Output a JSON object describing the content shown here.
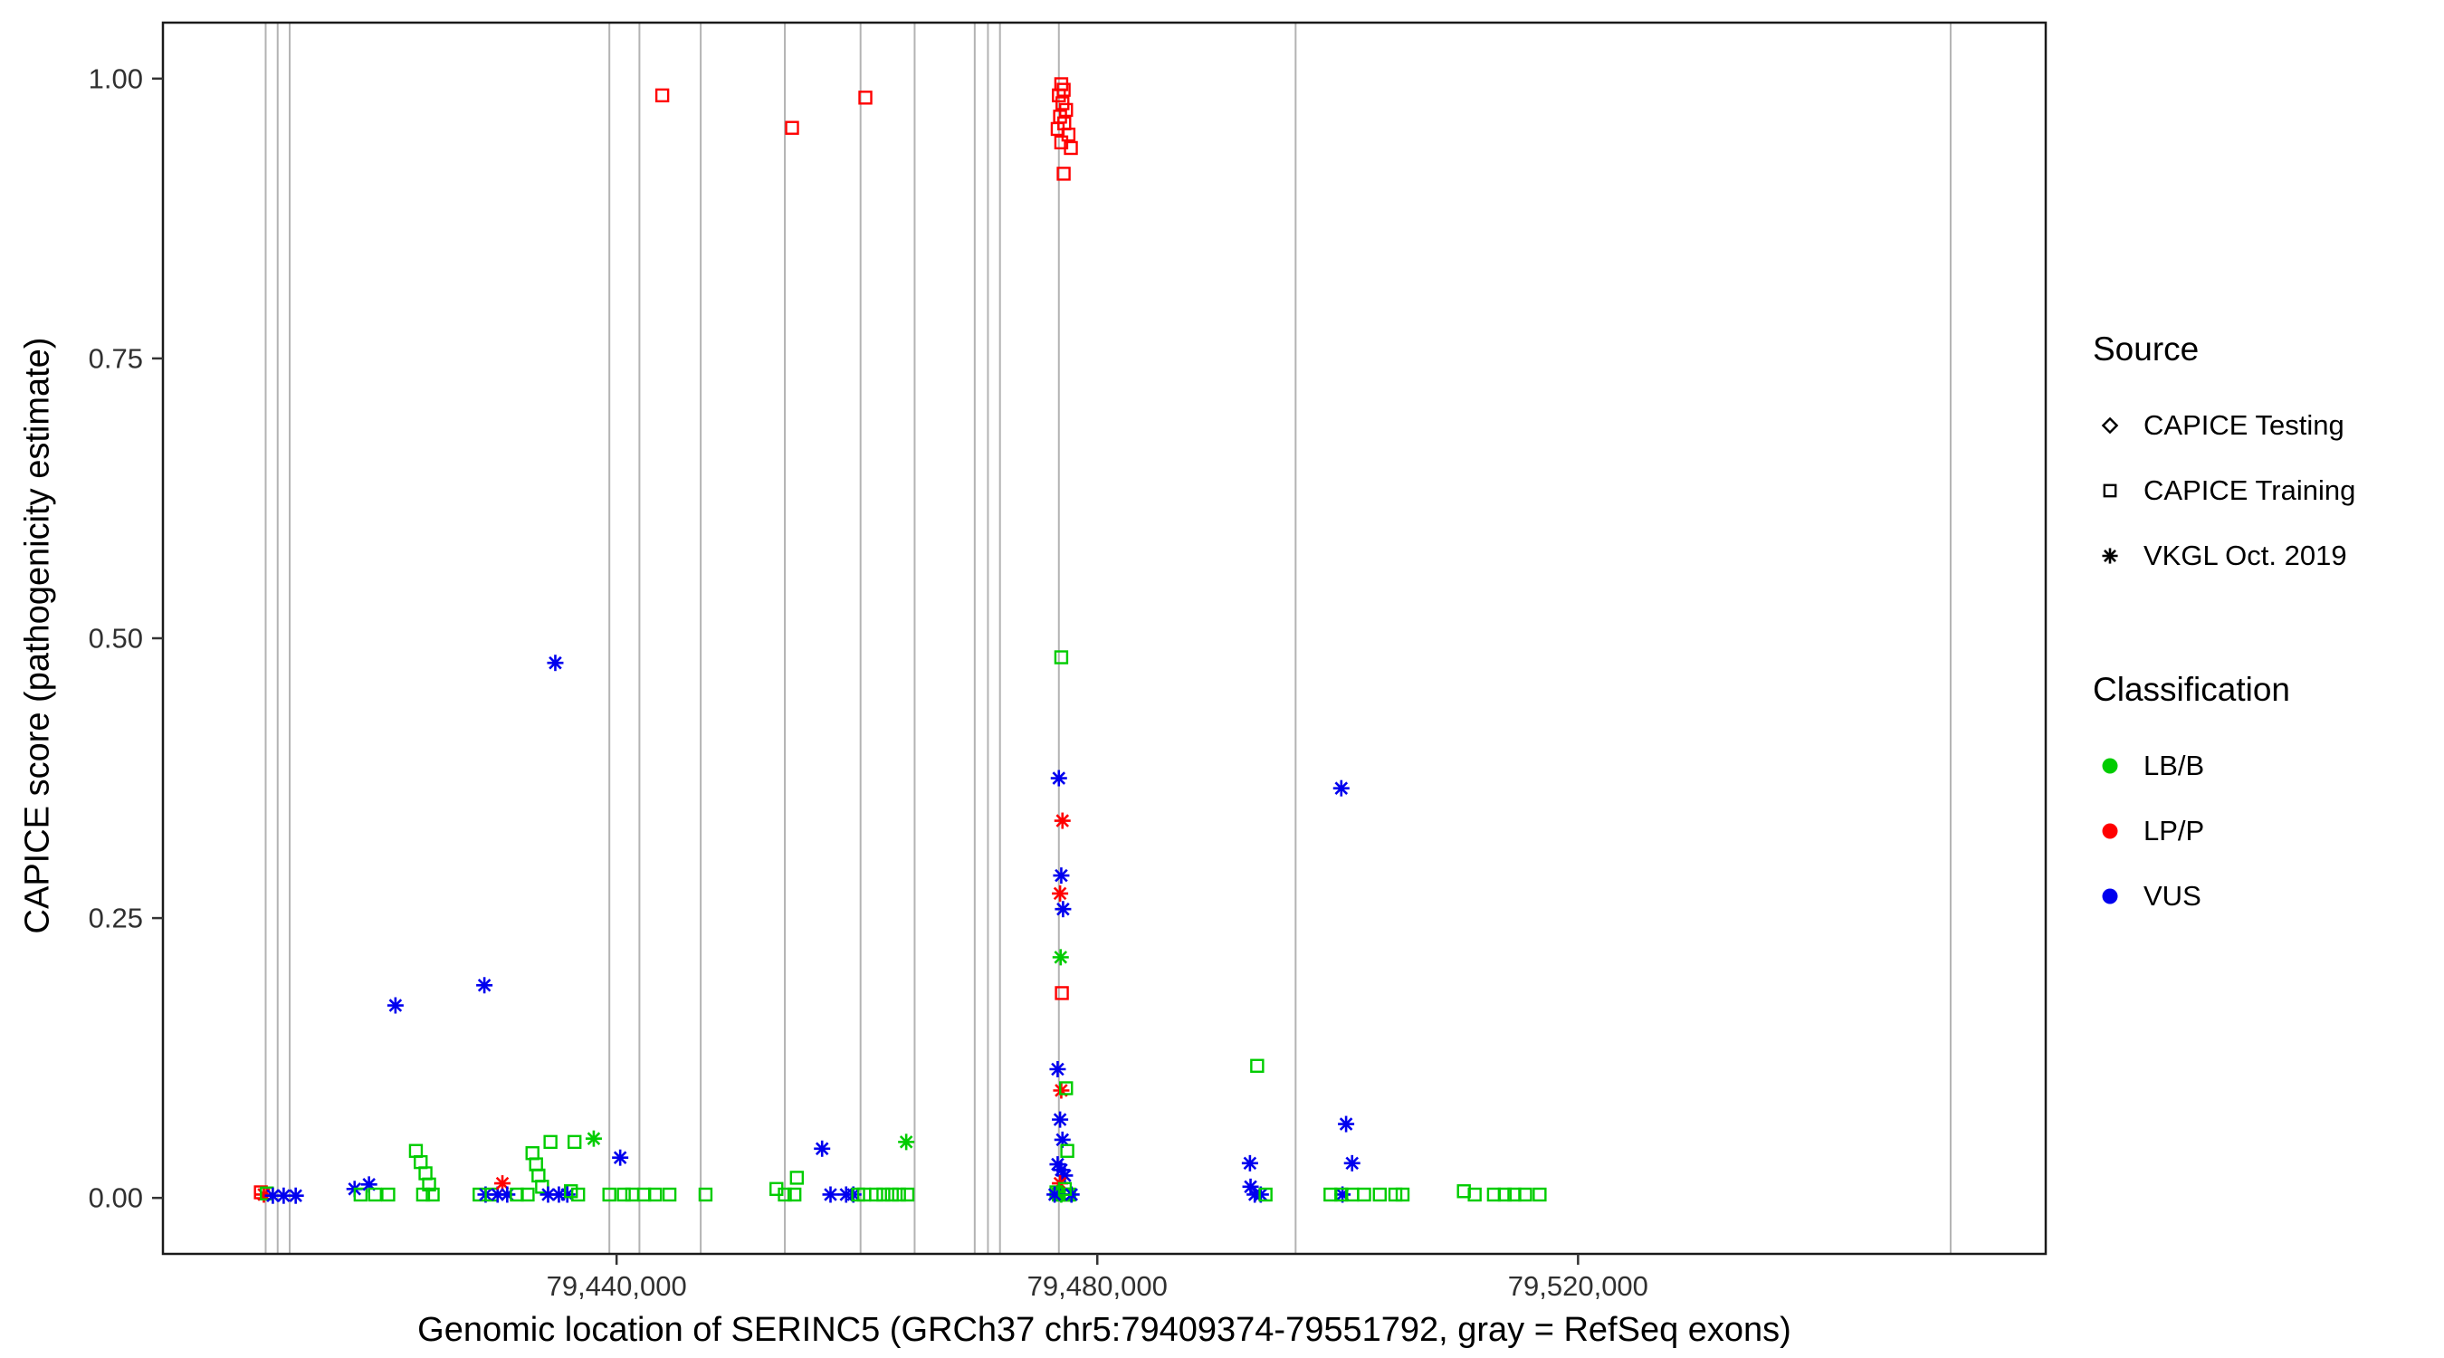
{
  "axes": {
    "x": {
      "label": "Genomic location of SERINC5 (GRCh37 chr5:79409374-79551792, gray = RefSeq exons)",
      "domain": [
        79402253,
        79558913
      ],
      "ticks": [
        {
          "value": 79440000,
          "label": "79,440,000"
        },
        {
          "value": 79480000,
          "label": "79,480,000"
        },
        {
          "value": 79520000,
          "label": "79,520,000"
        }
      ]
    },
    "y": {
      "label": "CAPICE score (pathogenicity estimate)",
      "domain": [
        -0.05,
        1.05
      ],
      "ticks": [
        {
          "value": 0.0,
          "label": "0.00"
        },
        {
          "value": 0.25,
          "label": "0.25"
        },
        {
          "value": 0.5,
          "label": "0.50"
        },
        {
          "value": 0.75,
          "label": "0.75"
        },
        {
          "value": 1.0,
          "label": "1.00"
        }
      ]
    }
  },
  "legend": {
    "source": {
      "title": "Source",
      "items": [
        {
          "label": "CAPICE Testing",
          "shape": "diamond"
        },
        {
          "label": "CAPICE Training",
          "shape": "square"
        },
        {
          "label": "VKGL Oct. 2019",
          "shape": "asterisk"
        }
      ]
    },
    "classification": {
      "title": "Classification",
      "items": [
        {
          "label": "LB/B",
          "color": "#00CC00"
        },
        {
          "label": "LP/P",
          "color": "#FF0000"
        },
        {
          "label": "VUS",
          "color": "#0000EE"
        }
      ]
    }
  },
  "chart_data": {
    "type": "scatter",
    "title": "",
    "xlabel": "Genomic location of SERINC5 (GRCh37 chr5:79409374-79551792, gray = RefSeq exons)",
    "ylabel": "CAPICE score (pathogenicity estimate)",
    "x_domain": [
      79402253,
      79558913
    ],
    "y_domain": [
      -0.05,
      1.05
    ],
    "grid": false,
    "legend_position": "right",
    "exon_color": "#B3B3B3",
    "panel_border_color": "#1a1a1a",
    "tick_text_color": "#303030",
    "shape_map": {
      "test": "diamond",
      "train": "square",
      "vkgl": "asterisk"
    },
    "source_labels": {
      "test": "CAPICE Testing",
      "train": "CAPICE Training",
      "vkgl": "VKGL Oct. 2019"
    },
    "color_map": {
      "LB/B": "#00CC00",
      "LP/P": "#FF0000",
      "VUS": "#0000EE"
    },
    "exons": [
      79410800,
      79411800,
      79412800,
      79439400,
      79441900,
      79447000,
      79454000,
      79460300,
      79464800,
      79469800,
      79470900,
      79471900,
      79476800,
      79496500,
      79551000
    ],
    "point_format": [
      "x_genomic_position",
      "y_capice_score",
      "source",
      "classification"
    ],
    "points": [
      [
        79410400,
        0.005,
        "train",
        "LP/P"
      ],
      [
        79410650,
        0.003,
        "vkgl",
        "LP/P"
      ],
      [
        79410900,
        0.004,
        "train",
        "LB/B"
      ],
      [
        79411400,
        0.002,
        "vkgl",
        "VUS"
      ],
      [
        79412300,
        0.002,
        "vkgl",
        "VUS"
      ],
      [
        79413300,
        0.002,
        "vkgl",
        "VUS"
      ],
      [
        79418200,
        0.008,
        "vkgl",
        "VUS"
      ],
      [
        79418700,
        0.003,
        "train",
        "LB/B"
      ],
      [
        79419400,
        0.012,
        "vkgl",
        "VUS"
      ],
      [
        79419900,
        0.003,
        "train",
        "LB/B"
      ],
      [
        79421000,
        0.003,
        "train",
        "LB/B"
      ],
      [
        79421600,
        0.172,
        "vkgl",
        "VUS"
      ],
      [
        79423300,
        0.042,
        "train",
        "LB/B"
      ],
      [
        79423700,
        0.032,
        "train",
        "LB/B"
      ],
      [
        79424100,
        0.022,
        "train",
        "LB/B"
      ],
      [
        79424400,
        0.012,
        "train",
        "LB/B"
      ],
      [
        79423900,
        0.003,
        "train",
        "LB/B"
      ],
      [
        79424700,
        0.003,
        "train",
        "LB/B"
      ],
      [
        79428600,
        0.003,
        "train",
        "LB/B"
      ],
      [
        79429000,
        0.19,
        "vkgl",
        "VUS"
      ],
      [
        79429100,
        0.003,
        "vkgl",
        "VUS"
      ],
      [
        79429600,
        0.003,
        "train",
        "LB/B"
      ],
      [
        79430100,
        0.003,
        "vkgl",
        "VUS"
      ],
      [
        79430500,
        0.013,
        "vkgl",
        "LP/P"
      ],
      [
        79430900,
        0.003,
        "vkgl",
        "VUS"
      ],
      [
        79431700,
        0.003,
        "train",
        "LB/B"
      ],
      [
        79432600,
        0.003,
        "train",
        "LB/B"
      ],
      [
        79433000,
        0.04,
        "train",
        "LB/B"
      ],
      [
        79433300,
        0.03,
        "train",
        "LB/B"
      ],
      [
        79433500,
        0.02,
        "train",
        "LB/B"
      ],
      [
        79433800,
        0.01,
        "train",
        "LB/B"
      ],
      [
        79434300,
        0.003,
        "vkgl",
        "VUS"
      ],
      [
        79434500,
        0.05,
        "train",
        "LB/B"
      ],
      [
        79434900,
        0.478,
        "vkgl",
        "VUS"
      ],
      [
        79435200,
        0.003,
        "vkgl",
        "VUS"
      ],
      [
        79435900,
        0.003,
        "vkgl",
        "VUS"
      ],
      [
        79436200,
        0.006,
        "train",
        "LB/B"
      ],
      [
        79436500,
        0.05,
        "train",
        "LB/B"
      ],
      [
        79436800,
        0.003,
        "train",
        "LB/B"
      ],
      [
        79438100,
        0.053,
        "vkgl",
        "LB/B"
      ],
      [
        79439400,
        0.003,
        "train",
        "LB/B"
      ],
      [
        79440300,
        0.036,
        "vkgl",
        "VUS"
      ],
      [
        79440600,
        0.003,
        "train",
        "LB/B"
      ],
      [
        79441300,
        0.003,
        "train",
        "LB/B"
      ],
      [
        79442300,
        0.003,
        "train",
        "LB/B"
      ],
      [
        79443200,
        0.003,
        "train",
        "LB/B"
      ],
      [
        79443800,
        0.985,
        "train",
        "LP/P"
      ],
      [
        79444400,
        0.003,
        "train",
        "LB/B"
      ],
      [
        79447400,
        0.003,
        "train",
        "LB/B"
      ],
      [
        79453300,
        0.008,
        "train",
        "LB/B"
      ],
      [
        79454000,
        0.003,
        "train",
        "LB/B"
      ],
      [
        79454600,
        0.956,
        "train",
        "LP/P"
      ],
      [
        79455000,
        0.018,
        "train",
        "LB/B"
      ],
      [
        79454800,
        0.003,
        "train",
        "LB/B"
      ],
      [
        79457100,
        0.044,
        "vkgl",
        "VUS"
      ],
      [
        79457800,
        0.003,
        "vkgl",
        "VUS"
      ],
      [
        79459100,
        0.003,
        "vkgl",
        "VUS"
      ],
      [
        79459700,
        0.003,
        "vkgl",
        "VUS"
      ],
      [
        79460100,
        0.003,
        "train",
        "LB/B"
      ],
      [
        79460600,
        0.003,
        "train",
        "LB/B"
      ],
      [
        79460700,
        0.983,
        "train",
        "LP/P"
      ],
      [
        79461600,
        0.003,
        "train",
        "LB/B"
      ],
      [
        79462200,
        0.003,
        "train",
        "LB/B"
      ],
      [
        79462900,
        0.003,
        "train",
        "LB/B"
      ],
      [
        79463500,
        0.003,
        "train",
        "LB/B"
      ],
      [
        79464100,
        0.05,
        "vkgl",
        "LB/B"
      ],
      [
        79464200,
        0.003,
        "train",
        "LB/B"
      ],
      [
        79477000,
        0.995,
        "train",
        "LP/P"
      ],
      [
        79477200,
        0.99,
        "train",
        "LP/P"
      ],
      [
        79476800,
        0.985,
        "train",
        "LP/P"
      ],
      [
        79477100,
        0.978,
        "train",
        "LP/P"
      ],
      [
        79477400,
        0.972,
        "train",
        "LP/P"
      ],
      [
        79476900,
        0.966,
        "train",
        "LP/P"
      ],
      [
        79477250,
        0.96,
        "train",
        "LP/P"
      ],
      [
        79476700,
        0.955,
        "train",
        "LP/P"
      ],
      [
        79477600,
        0.95,
        "train",
        "LP/P"
      ],
      [
        79477000,
        0.943,
        "train",
        "LP/P"
      ],
      [
        79477800,
        0.938,
        "train",
        "LP/P"
      ],
      [
        79477200,
        0.915,
        "train",
        "LP/P"
      ],
      [
        79477000,
        0.483,
        "train",
        "LB/B"
      ],
      [
        79476800,
        0.375,
        "vkgl",
        "VUS"
      ],
      [
        79477100,
        0.337,
        "vkgl",
        "LP/P"
      ],
      [
        79477000,
        0.288,
        "vkgl",
        "VUS"
      ],
      [
        79476900,
        0.272,
        "vkgl",
        "LP/P"
      ],
      [
        79477150,
        0.258,
        "vkgl",
        "VUS"
      ],
      [
        79476950,
        0.215,
        "vkgl",
        "LB/B"
      ],
      [
        79477050,
        0.183,
        "train",
        "LP/P"
      ],
      [
        79476700,
        0.115,
        "vkgl",
        "VUS"
      ],
      [
        79477000,
        0.096,
        "vkgl",
        "LP/P"
      ],
      [
        79477400,
        0.098,
        "train",
        "LB/B"
      ],
      [
        79476900,
        0.07,
        "vkgl",
        "VUS"
      ],
      [
        79477100,
        0.052,
        "vkgl",
        "VUS"
      ],
      [
        79477500,
        0.042,
        "train",
        "LB/B"
      ],
      [
        79476700,
        0.03,
        "vkgl",
        "VUS"
      ],
      [
        79477000,
        0.025,
        "vkgl",
        "VUS"
      ],
      [
        79477300,
        0.02,
        "vkgl",
        "VUS"
      ],
      [
        79476900,
        0.013,
        "vkgl",
        "LP/P"
      ],
      [
        79476600,
        0.005,
        "train",
        "LB/B"
      ],
      [
        79476800,
        0.003,
        "train",
        "LB/B"
      ],
      [
        79477000,
        0.003,
        "vkgl",
        "LB/B"
      ],
      [
        79477200,
        0.003,
        "train",
        "LB/B"
      ],
      [
        79477450,
        0.003,
        "train",
        "LB/B"
      ],
      [
        79477650,
        0.003,
        "train",
        "LB/B"
      ],
      [
        79476450,
        0.003,
        "vkgl",
        "VUS"
      ],
      [
        79477850,
        0.003,
        "vkgl",
        "VUS"
      ],
      [
        79477300,
        0.008,
        "train",
        "LB/B"
      ],
      [
        79493300,
        0.118,
        "train",
        "LB/B"
      ],
      [
        79492700,
        0.031,
        "vkgl",
        "VUS"
      ],
      [
        79492750,
        0.01,
        "vkgl",
        "VUS"
      ],
      [
        79493100,
        0.003,
        "vkgl",
        "VUS"
      ],
      [
        79493600,
        0.003,
        "vkgl",
        "VUS"
      ],
      [
        79494000,
        0.003,
        "train",
        "LB/B"
      ],
      [
        79500300,
        0.366,
        "vkgl",
        "VUS"
      ],
      [
        79500700,
        0.066,
        "vkgl",
        "VUS"
      ],
      [
        79501200,
        0.031,
        "vkgl",
        "VUS"
      ],
      [
        79500400,
        0.003,
        "vkgl",
        "VUS"
      ],
      [
        79499400,
        0.003,
        "train",
        "LB/B"
      ],
      [
        79500300,
        0.003,
        "train",
        "LB/B"
      ],
      [
        79501200,
        0.003,
        "train",
        "LB/B"
      ],
      [
        79502200,
        0.003,
        "train",
        "LB/B"
      ],
      [
        79503500,
        0.003,
        "train",
        "LB/B"
      ],
      [
        79504800,
        0.003,
        "train",
        "LB/B"
      ],
      [
        79505400,
        0.003,
        "train",
        "LB/B"
      ],
      [
        79510500,
        0.006,
        "train",
        "LB/B"
      ],
      [
        79511400,
        0.003,
        "train",
        "LB/B"
      ],
      [
        79513000,
        0.003,
        "train",
        "LB/B"
      ],
      [
        79513900,
        0.003,
        "train",
        "LB/B"
      ],
      [
        79514700,
        0.003,
        "train",
        "LB/B"
      ],
      [
        79515600,
        0.003,
        "train",
        "LB/B"
      ],
      [
        79516800,
        0.003,
        "train",
        "LB/B"
      ]
    ]
  }
}
